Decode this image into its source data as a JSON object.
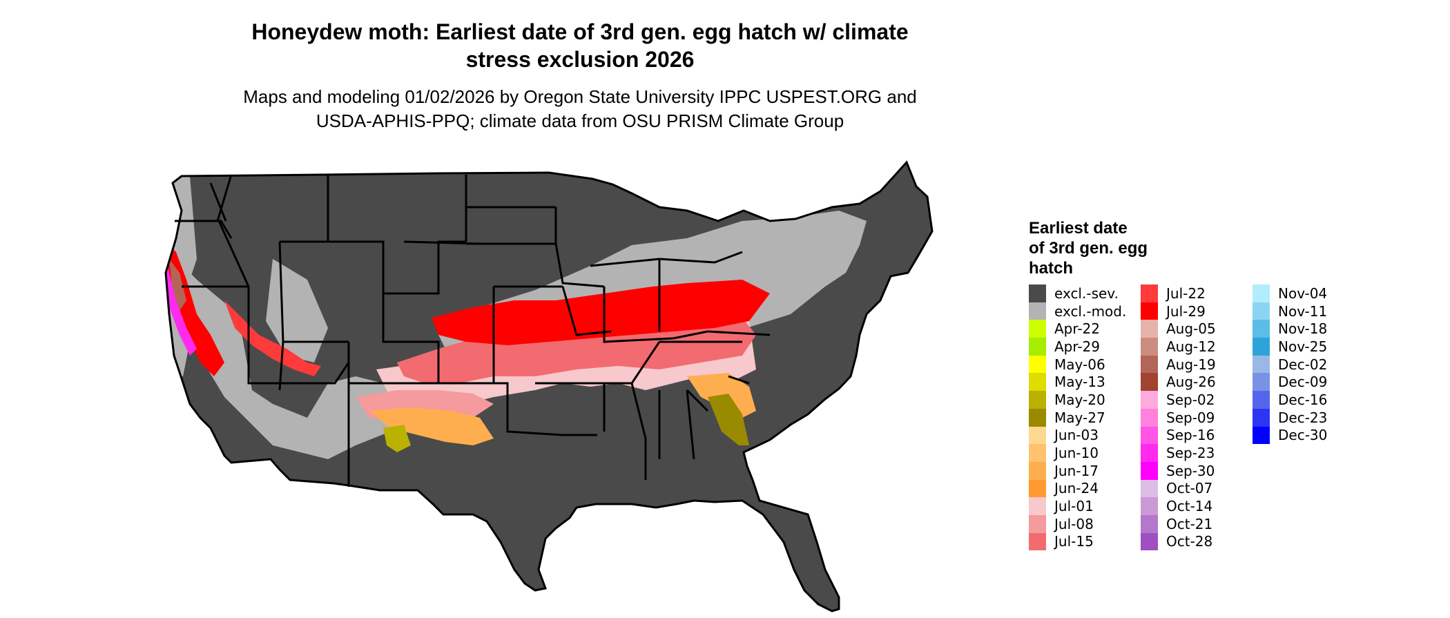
{
  "title_line1": "Honeydew moth: Earliest date of 3rd gen. egg hatch w/ climate",
  "title_line2": "stress exclusion 2026",
  "subtitle_line1": "Maps and modeling 01/02/2026 by Oregon State University IPPC USPEST.ORG and",
  "subtitle_line2": "USDA-APHIS-PPQ; climate data from OSU PRISM Climate Group",
  "legend": {
    "title_line1": "Earliest date",
    "title_line2": "of 3rd gen. egg",
    "title_line3": "hatch",
    "columns": [
      [
        {
          "label": "excl.-sev.",
          "color": "#4a4a4a"
        },
        {
          "label": "excl.-mod.",
          "color": "#b3b3b3"
        },
        {
          "label": "Apr-22",
          "color": "#ccff00"
        },
        {
          "label": "Apr-29",
          "color": "#a6ee00"
        },
        {
          "label": "May-06",
          "color": "#ffff00"
        },
        {
          "label": "May-13",
          "color": "#dddd00"
        },
        {
          "label": "May-20",
          "color": "#bbb100"
        },
        {
          "label": "May-27",
          "color": "#9a8a00"
        },
        {
          "label": "Jun-03",
          "color": "#ffd890"
        },
        {
          "label": "Jun-10",
          "color": "#ffc26e"
        },
        {
          "label": "Jun-17",
          "color": "#ffae4f"
        },
        {
          "label": "Jun-24",
          "color": "#ff9930"
        },
        {
          "label": "Jul-01",
          "color": "#f7c9cc"
        },
        {
          "label": "Jul-08",
          "color": "#f59a9d"
        },
        {
          "label": "Jul-15",
          "color": "#f26b70"
        }
      ],
      [
        {
          "label": "Jul-22",
          "color": "#ff3a3a"
        },
        {
          "label": "Jul-29",
          "color": "#ff0000"
        },
        {
          "label": "Aug-05",
          "color": "#e6b3aa"
        },
        {
          "label": "Aug-12",
          "color": "#cc8d80"
        },
        {
          "label": "Aug-19",
          "color": "#b36558"
        },
        {
          "label": "Aug-26",
          "color": "#a04430"
        },
        {
          "label": "Sep-02",
          "color": "#ffaadd"
        },
        {
          "label": "Sep-09",
          "color": "#ff80dd"
        },
        {
          "label": "Sep-16",
          "color": "#ff55e6"
        },
        {
          "label": "Sep-23",
          "color": "#ff2af0"
        },
        {
          "label": "Sep-30",
          "color": "#ff00ff"
        },
        {
          "label": "Oct-07",
          "color": "#dcbde6"
        },
        {
          "label": "Oct-14",
          "color": "#c99ad6"
        },
        {
          "label": "Oct-21",
          "color": "#b377cc"
        },
        {
          "label": "Oct-28",
          "color": "#9e4fc2"
        }
      ],
      [
        {
          "label": "Nov-04",
          "color": "#b3ecfb"
        },
        {
          "label": "Nov-11",
          "color": "#8ad6f2"
        },
        {
          "label": "Nov-18",
          "color": "#5cbde6"
        },
        {
          "label": "Nov-25",
          "color": "#2ea3d9"
        },
        {
          "label": "Dec-02",
          "color": "#9ab8e6"
        },
        {
          "label": "Dec-09",
          "color": "#7a92e6"
        },
        {
          "label": "Dec-16",
          "color": "#5666ec"
        },
        {
          "label": "Dec-23",
          "color": "#2b35f2"
        },
        {
          "label": "Dec-30",
          "color": "#0000ff"
        }
      ]
    ]
  }
}
